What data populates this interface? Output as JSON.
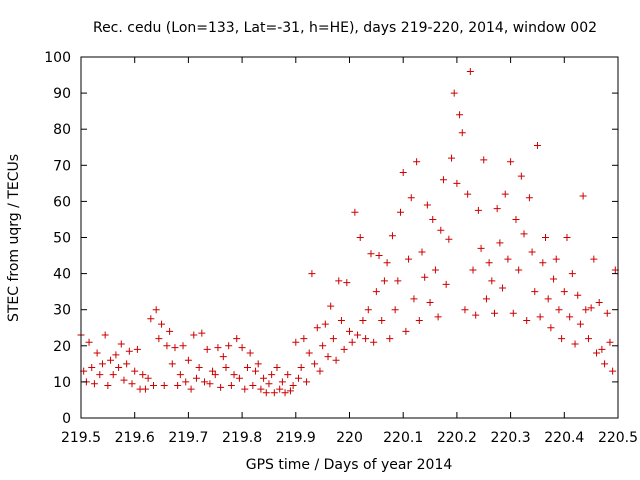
{
  "chart_data": {
    "type": "scatter",
    "title": "Rec. cedu (Lon=133, Lat=-31, h=HE), days 219-220, 2014, window 002",
    "xlabel": "GPS time / Days of year 2014",
    "ylabel": "STEC from uqrg / TECUs",
    "xlim": [
      219.5,
      220.5
    ],
    "ylim": [
      0,
      100
    ],
    "x_ticks": [
      219.5,
      219.6,
      219.7,
      219.8,
      219.9,
      220,
      220.1,
      220.2,
      220.3,
      220.4,
      220.5
    ],
    "x_tick_labels": [
      "219.5",
      "219.6",
      "219.7",
      "219.8",
      "219.9",
      "220",
      "220.1",
      "220.2",
      "220.3",
      "220.4",
      "220.5"
    ],
    "y_ticks": [
      0,
      10,
      20,
      30,
      40,
      50,
      60,
      70,
      80,
      90,
      100
    ],
    "y_tick_labels": [
      "0",
      "10",
      "20",
      "30",
      "40",
      "50",
      "60",
      "70",
      "80",
      "90",
      "100"
    ],
    "grid": false,
    "legend": "none",
    "marker": "plus",
    "marker_color": "#cc0000",
    "points": [
      [
        219.5,
        23.0
      ],
      [
        219.505,
        13.0
      ],
      [
        219.51,
        10.0
      ],
      [
        219.515,
        21.0
      ],
      [
        219.52,
        14.0
      ],
      [
        219.525,
        9.5
      ],
      [
        219.53,
        18.0
      ],
      [
        219.535,
        12.0
      ],
      [
        219.54,
        15.0
      ],
      [
        219.545,
        23.0
      ],
      [
        219.55,
        9.0
      ],
      [
        219.555,
        16.0
      ],
      [
        219.56,
        12.0
      ],
      [
        219.565,
        17.5
      ],
      [
        219.57,
        14.0
      ],
      [
        219.575,
        20.5
      ],
      [
        219.58,
        10.5
      ],
      [
        219.585,
        15.0
      ],
      [
        219.59,
        18.5
      ],
      [
        219.595,
        9.5
      ],
      [
        219.6,
        13.0
      ],
      [
        219.605,
        19.0
      ],
      [
        219.61,
        8.0
      ],
      [
        219.615,
        12.0
      ],
      [
        219.62,
        8.0
      ],
      [
        219.625,
        11.0
      ],
      [
        219.63,
        27.5
      ],
      [
        219.635,
        9.0
      ],
      [
        219.64,
        30.0
      ],
      [
        219.645,
        22.0
      ],
      [
        219.65,
        26.0
      ],
      [
        219.655,
        9.0
      ],
      [
        219.66,
        20.0
      ],
      [
        219.665,
        24.0
      ],
      [
        219.67,
        15.0
      ],
      [
        219.675,
        19.5
      ],
      [
        219.68,
        9.0
      ],
      [
        219.685,
        12.0
      ],
      [
        219.69,
        20.0
      ],
      [
        219.695,
        10.0
      ],
      [
        219.7,
        16.0
      ],
      [
        219.705,
        8.0
      ],
      [
        219.71,
        23.0
      ],
      [
        219.715,
        11.0
      ],
      [
        219.72,
        14.0
      ],
      [
        219.725,
        23.5
      ],
      [
        219.73,
        10.0
      ],
      [
        219.735,
        19.0
      ],
      [
        219.74,
        9.5
      ],
      [
        219.745,
        13.0
      ],
      [
        219.75,
        12.0
      ],
      [
        219.755,
        19.5
      ],
      [
        219.76,
        8.5
      ],
      [
        219.765,
        17.0
      ],
      [
        219.77,
        14.0
      ],
      [
        219.775,
        20.0
      ],
      [
        219.78,
        9.0
      ],
      [
        219.785,
        12.0
      ],
      [
        219.79,
        22.0
      ],
      [
        219.795,
        11.0
      ],
      [
        219.8,
        19.5
      ],
      [
        219.805,
        8.0
      ],
      [
        219.81,
        14.0
      ],
      [
        219.815,
        18.0
      ],
      [
        219.82,
        9.0
      ],
      [
        219.825,
        13.0
      ],
      [
        219.83,
        15.0
      ],
      [
        219.835,
        8.0
      ],
      [
        219.84,
        11.0
      ],
      [
        219.845,
        7.0
      ],
      [
        219.85,
        9.5
      ],
      [
        219.855,
        12.0
      ],
      [
        219.86,
        7.0
      ],
      [
        219.865,
        14.0
      ],
      [
        219.87,
        8.0
      ],
      [
        219.875,
        10.0
      ],
      [
        219.88,
        7.0
      ],
      [
        219.885,
        12.0
      ],
      [
        219.89,
        7.5
      ],
      [
        219.895,
        9.0
      ],
      [
        219.9,
        21.0
      ],
      [
        219.905,
        11.0
      ],
      [
        219.91,
        14.0
      ],
      [
        219.915,
        22.0
      ],
      [
        219.92,
        10.0
      ],
      [
        219.925,
        18.0
      ],
      [
        219.93,
        40.0
      ],
      [
        219.935,
        15.0
      ],
      [
        219.94,
        25.0
      ],
      [
        219.945,
        13.0
      ],
      [
        219.95,
        20.0
      ],
      [
        219.955,
        26.0
      ],
      [
        219.96,
        17.0
      ],
      [
        219.965,
        31.0
      ],
      [
        219.97,
        22.0
      ],
      [
        219.975,
        16.0
      ],
      [
        219.98,
        38.0
      ],
      [
        219.985,
        27.0
      ],
      [
        219.99,
        19.0
      ],
      [
        219.995,
        37.5
      ],
      [
        220.0,
        24.0
      ],
      [
        220.005,
        21.0
      ],
      [
        220.01,
        57.0
      ],
      [
        220.015,
        23.0
      ],
      [
        220.02,
        50.0
      ],
      [
        220.025,
        27.0
      ],
      [
        220.03,
        22.0
      ],
      [
        220.035,
        30.0
      ],
      [
        220.04,
        45.5
      ],
      [
        220.045,
        21.0
      ],
      [
        220.05,
        35.0
      ],
      [
        220.055,
        45.0
      ],
      [
        220.06,
        27.0
      ],
      [
        220.065,
        38.0
      ],
      [
        220.07,
        43.0
      ],
      [
        220.075,
        22.0
      ],
      [
        220.08,
        50.5
      ],
      [
        220.085,
        30.0
      ],
      [
        220.09,
        38.0
      ],
      [
        220.095,
        57.0
      ],
      [
        220.1,
        68.0
      ],
      [
        220.105,
        24.0
      ],
      [
        220.11,
        44.0
      ],
      [
        220.115,
        61.0
      ],
      [
        220.12,
        33.0
      ],
      [
        220.125,
        71.0
      ],
      [
        220.13,
        27.0
      ],
      [
        220.135,
        46.0
      ],
      [
        220.14,
        39.0
      ],
      [
        220.145,
        59.0
      ],
      [
        220.15,
        32.0
      ],
      [
        220.155,
        55.0
      ],
      [
        220.16,
        41.0
      ],
      [
        220.165,
        28.0
      ],
      [
        220.17,
        52.0
      ],
      [
        220.175,
        66.0
      ],
      [
        220.18,
        37.0
      ],
      [
        220.185,
        49.5
      ],
      [
        220.19,
        72.0
      ],
      [
        220.195,
        90.0
      ],
      [
        220.2,
        65.0
      ],
      [
        220.205,
        84.0
      ],
      [
        220.21,
        79.0
      ],
      [
        220.215,
        30.0
      ],
      [
        220.22,
        62.0
      ],
      [
        220.225,
        96.0
      ],
      [
        220.23,
        41.0
      ],
      [
        220.235,
        28.5
      ],
      [
        220.24,
        57.5
      ],
      [
        220.245,
        47.0
      ],
      [
        220.25,
        71.5
      ],
      [
        220.255,
        33.0
      ],
      [
        220.26,
        43.0
      ],
      [
        220.265,
        38.0
      ],
      [
        220.27,
        29.0
      ],
      [
        220.275,
        58.0
      ],
      [
        220.28,
        48.5
      ],
      [
        220.285,
        36.0
      ],
      [
        220.29,
        62.0
      ],
      [
        220.295,
        44.0
      ],
      [
        220.3,
        71.0
      ],
      [
        220.305,
        29.0
      ],
      [
        220.31,
        55.0
      ],
      [
        220.315,
        41.0
      ],
      [
        220.32,
        67.0
      ],
      [
        220.325,
        51.0
      ],
      [
        220.33,
        27.0
      ],
      [
        220.335,
        61.0
      ],
      [
        220.34,
        46.0
      ],
      [
        220.345,
        35.0
      ],
      [
        220.35,
        75.5
      ],
      [
        220.355,
        28.0
      ],
      [
        220.36,
        43.0
      ],
      [
        220.365,
        50.0
      ],
      [
        220.37,
        33.0
      ],
      [
        220.375,
        25.0
      ],
      [
        220.38,
        38.5
      ],
      [
        220.385,
        44.0
      ],
      [
        220.39,
        30.0
      ],
      [
        220.395,
        22.0
      ],
      [
        220.4,
        35.0
      ],
      [
        220.405,
        50.0
      ],
      [
        220.41,
        28.0
      ],
      [
        220.415,
        40.0
      ],
      [
        220.42,
        20.5
      ],
      [
        220.425,
        34.0
      ],
      [
        220.43,
        26.0
      ],
      [
        220.435,
        61.5
      ],
      [
        220.44,
        30.0
      ],
      [
        220.445,
        22.0
      ],
      [
        220.45,
        30.5
      ],
      [
        220.455,
        44.0
      ],
      [
        220.46,
        18.0
      ],
      [
        220.465,
        32.0
      ],
      [
        220.47,
        19.0
      ],
      [
        220.475,
        15.0
      ],
      [
        220.48,
        29.0
      ],
      [
        220.485,
        21.0
      ],
      [
        220.49,
        13.0
      ],
      [
        220.495,
        41.0
      ]
    ]
  }
}
